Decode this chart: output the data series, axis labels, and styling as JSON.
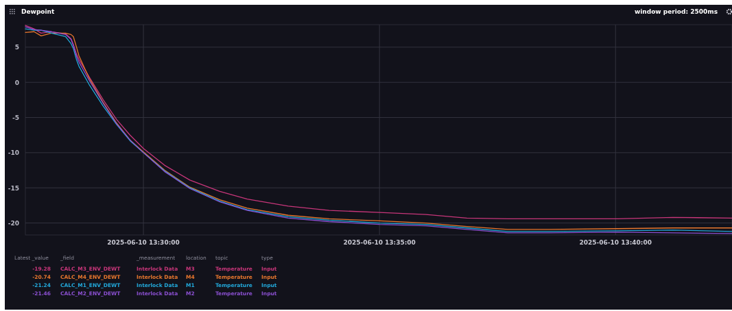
{
  "chart_data": {
    "type": "line",
    "title": "Dewpoint",
    "x": [
      "2025-06-10T13:27:30",
      "2025-06-10T13:27:41",
      "2025-06-10T13:27:50",
      "2025-06-10T13:28:03",
      "2025-06-10T13:28:21",
      "2025-06-10T13:28:28",
      "2025-06-10T13:28:31",
      "2025-06-10T13:28:35",
      "2025-06-10T13:28:38",
      "2025-06-10T13:28:51",
      "2025-06-10T13:29:09",
      "2025-06-10T13:29:26",
      "2025-06-10T13:29:43",
      "2025-06-10T13:30:00",
      "2025-06-10T13:30:27",
      "2025-06-10T13:30:59",
      "2025-06-10T13:31:37",
      "2025-06-10T13:32:12",
      "2025-06-10T13:33:04",
      "2025-06-10T13:33:56",
      "2025-06-10T13:35:00",
      "2025-06-10T13:35:59",
      "2025-06-10T13:36:51",
      "2025-06-10T13:37:43",
      "2025-06-10T13:38:36",
      "2025-06-10T13:40:03",
      "2025-06-10T13:41:13",
      "2025-06-10T13:42:28"
    ],
    "series": [
      {
        "name": "CALC_M3_ENV_DEWT",
        "color": "#c8367a",
        "values": [
          8.1,
          7.6,
          7.0,
          7.2,
          6.9,
          6.2,
          5.4,
          4.0,
          3.3,
          0.8,
          -2.5,
          -5.3,
          -7.5,
          -9.4,
          -11.8,
          -13.9,
          -15.5,
          -16.6,
          -17.6,
          -18.2,
          -18.5,
          -18.8,
          -19.3,
          -19.4,
          -19.4,
          -19.4,
          -19.2,
          -19.3
        ]
      },
      {
        "name": "CALC_M4_ENV_DEWT",
        "color": "#e8772e",
        "values": [
          7.1,
          7.2,
          6.6,
          7.0,
          7.0,
          6.8,
          6.5,
          5.0,
          3.8,
          0.6,
          -2.9,
          -5.8,
          -8.2,
          -9.9,
          -12.5,
          -14.9,
          -16.7,
          -17.9,
          -18.9,
          -19.4,
          -19.7,
          -20.0,
          -20.5,
          -20.9,
          -20.9,
          -20.8,
          -20.7,
          -20.7
        ]
      },
      {
        "name": "CALC_M1_ENV_DEWT",
        "color": "#22a7d9",
        "values": [
          7.6,
          7.4,
          7.4,
          7.0,
          6.5,
          5.5,
          4.8,
          3.2,
          2.3,
          -0.3,
          -3.4,
          -6.0,
          -8.3,
          -10.0,
          -12.6,
          -15.0,
          -16.9,
          -18.1,
          -19.1,
          -19.6,
          -20.0,
          -20.2,
          -20.7,
          -21.2,
          -21.2,
          -21.1,
          -21.0,
          -21.2
        ]
      },
      {
        "name": "CALC_M2_ENV_DEWT",
        "color": "#8a4fd0",
        "values": [
          7.9,
          7.5,
          7.4,
          7.2,
          6.8,
          6.1,
          5.2,
          3.7,
          2.9,
          0.3,
          -3.0,
          -5.9,
          -8.2,
          -10.0,
          -12.7,
          -15.1,
          -17.0,
          -18.2,
          -19.3,
          -19.8,
          -20.2,
          -20.4,
          -20.9,
          -21.4,
          -21.4,
          -21.3,
          -21.4,
          -21.5
        ]
      }
    ],
    "xlim": [
      "2025-06-10T13:27:30",
      "2025-06-10T13:42:28"
    ],
    "xticks": [
      {
        "value": "2025-06-10T13:30:00",
        "label": "2025-06-10 13:30:00"
      },
      {
        "value": "2025-06-10T13:35:00",
        "label": "2025-06-10 13:35:00"
      },
      {
        "value": "2025-06-10T13:40:00",
        "label": "2025-06-10 13:40:00"
      }
    ],
    "ylim": [
      -21.7,
      8.2
    ],
    "yticks": [
      -20,
      -15,
      -10,
      -5,
      0,
      5
    ],
    "grid": true,
    "legend": "bottom",
    "annotations": [
      "window period: 2500ms",
      "Latest _value",
      "_field",
      "_measurement",
      "location",
      "topic",
      "type",
      "-19.28",
      "Interlock Data",
      "M3",
      "Temperature",
      "Input",
      "-20.74",
      "Interlock Data",
      "M4",
      "Temperature",
      "Input",
      "-21.24",
      "Interlock Data",
      "M1",
      "Temperature",
      "Input",
      "-21.46",
      "Interlock Data",
      "M2",
      "Temperature",
      "Input"
    ]
  }
}
